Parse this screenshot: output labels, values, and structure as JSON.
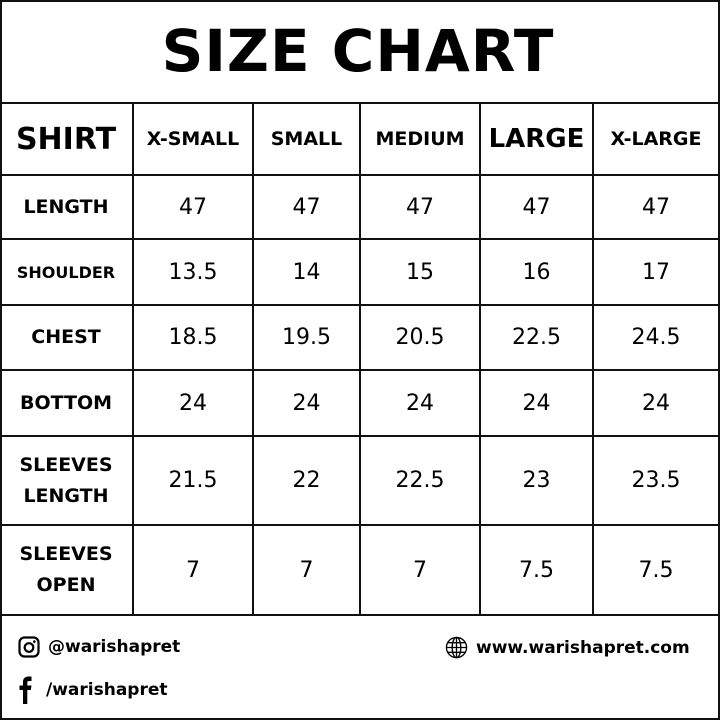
{
  "title": "SIZE CHART",
  "table": {
    "corner": "SHIRT",
    "columns": [
      "X-SMALL",
      "SMALL",
      "MEDIUM",
      "LARGE",
      "X-LARGE"
    ],
    "rows": [
      {
        "label": "LENGTH",
        "values": [
          "47",
          "47",
          "47",
          "47",
          "47"
        ]
      },
      {
        "label": "SHOULDER",
        "values": [
          "13.5",
          "14",
          "15",
          "16",
          "17"
        ]
      },
      {
        "label": "CHEST",
        "values": [
          "18.5",
          "19.5",
          "20.5",
          "22.5",
          "24.5"
        ]
      },
      {
        "label": "BOTTOM",
        "values": [
          "24",
          "24",
          "24",
          "24",
          "24"
        ]
      },
      {
        "label": "SLEEVES LENGTH",
        "values": [
          "21.5",
          "22",
          "22.5",
          "23",
          "23.5"
        ]
      },
      {
        "label": "SLEEVES OPEN",
        "values": [
          "7",
          "7",
          "7",
          "7.5",
          "7.5"
        ]
      }
    ]
  },
  "footer": {
    "instagram": {
      "icon": "instagram-icon",
      "handle": "@warishapret"
    },
    "facebook": {
      "icon": "facebook-icon",
      "handle": "/warishapret"
    },
    "website": {
      "icon": "globe-icon",
      "url": "www.warishapret.com"
    }
  }
}
